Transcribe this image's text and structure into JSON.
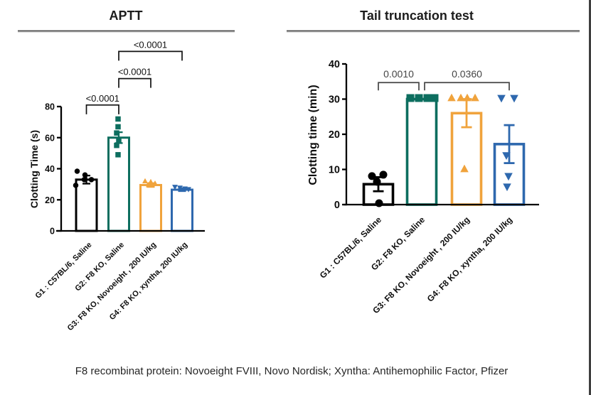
{
  "footer": {
    "caption": "F8 recombinat protein: Novoeight FVIII, Novo Nordisk; Xyntha: Antihemophilic Factor, Pfizer"
  },
  "colors": {
    "g1_black": "#000000",
    "g2_teal": "#0d6e5f",
    "g3_orange": "#f0a33c",
    "g4_blue": "#2e68ae",
    "divider_gray": "#6f6f6f",
    "bar_fill": "#ffffff",
    "sig_text_left": "#111111",
    "sig_text_right": "#454545"
  },
  "chart_data": [
    {
      "type": "bar",
      "title": "APTT",
      "ylabel": "Clotting Time (s)",
      "xlabel": "",
      "ylim": [
        0,
        80
      ],
      "yticks": [
        0,
        20,
        40,
        60,
        80
      ],
      "grid": false,
      "legend": "none",
      "categories": [
        "G1 : C57BL/6, Saline",
        "G2: F8 KO, Saline",
        "G3: F8 KO, Novoeight , 200 IU/kg",
        "G4: F8 KO, xyntha, 200 IU/kg"
      ],
      "series": [
        {
          "name": "G1",
          "mean": 33,
          "sem": 2.6,
          "color": "#000000",
          "marker": "circle",
          "points": [
            [
              38.4,
              -13
            ],
            [
              36,
              -2
            ],
            [
              33,
              7
            ],
            [
              33,
              -3
            ],
            [
              29.3,
              -15
            ]
          ]
        },
        {
          "name": "G2",
          "mean": 60,
          "sem": 3.5,
          "color": "#0d6e5f",
          "marker": "square",
          "points": [
            [
              72,
              -1
            ],
            [
              67,
              -1
            ],
            [
              63,
              -3
            ],
            [
              58.5,
              0
            ],
            [
              55,
              -3
            ],
            [
              49,
              -1
            ]
          ]
        },
        {
          "name": "G3",
          "mean": 29.5,
          "sem": 1.2,
          "color": "#f0a33c",
          "marker": "triangle-up",
          "points": [
            [
              32,
              -8
            ],
            [
              31.5,
              0
            ],
            [
              30.5,
              6
            ],
            [
              29.5,
              -3
            ]
          ]
        },
        {
          "name": "G4",
          "mean": 26.5,
          "sem": 0.9,
          "color": "#2e68ae",
          "marker": "triangle-down",
          "points": [
            [
              28.3,
              -10
            ],
            [
              27.8,
              -3
            ],
            [
              27.2,
              4
            ],
            [
              26.8,
              9
            ]
          ]
        }
      ],
      "significance": [
        {
          "from": 0,
          "to": 1,
          "label": "<0.0001",
          "y": 81
        },
        {
          "from": 1,
          "to": 2,
          "label": "<0.0001",
          "y": 98
        },
        {
          "from": 1,
          "to": 3,
          "label": "<0.0001",
          "y": 115.5
        }
      ]
    },
    {
      "type": "bar",
      "title": "Tail truncation test",
      "ylabel": "Clotting time (min)",
      "xlabel": "",
      "ylim": [
        0,
        40
      ],
      "yticks": [
        0,
        10,
        20,
        30,
        40
      ],
      "grid": false,
      "legend": "none",
      "categories": [
        "G1 : C57BL/6, Saline",
        "G2: F8 KO, Saline",
        "G3: F8 KO, Novoeight , 200 IU/kg",
        "G4: F8 KO, xyntha, 200 IU/kg"
      ],
      "series": [
        {
          "name": "G1",
          "mean": 5.8,
          "sem": 2.0,
          "color": "#000000",
          "marker": "circle",
          "points": [
            [
              8.1,
              -9
            ],
            [
              8.5,
              7
            ],
            [
              6.5,
              -2
            ],
            [
              0.4,
              1
            ]
          ]
        },
        {
          "name": "G2",
          "mean": 30,
          "sem": 0,
          "color": "#0d6e5f",
          "marker": "square",
          "points": [
            [
              30.3,
              -16
            ],
            [
              30.3,
              -4
            ],
            [
              30.3,
              8
            ],
            [
              30.3,
              18
            ]
          ]
        },
        {
          "name": "G3",
          "mean": 26,
          "sem": 4.0,
          "color": "#f0a33c",
          "marker": "triangle-up",
          "points": [
            [
              30.3,
              -21
            ],
            [
              30.3,
              -8
            ],
            [
              30.3,
              1
            ],
            [
              30.3,
              12
            ],
            [
              10.1,
              -3
            ]
          ]
        },
        {
          "name": "G4",
          "mean": 17.2,
          "sem": 5.4,
          "color": "#2e68ae",
          "marker": "triangle-down",
          "points": [
            [
              30.3,
              -11
            ],
            [
              30.3,
              7
            ],
            [
              14,
              -4
            ],
            [
              8.1,
              -1
            ],
            [
              5.1,
              -3
            ]
          ]
        }
      ],
      "significance": [
        {
          "from": 0,
          "to": 1,
          "label": "0.0010",
          "y": 34.7,
          "to_dx": -4
        },
        {
          "from": 1,
          "to": 3,
          "label": "0.0360",
          "y": 34.7,
          "from_dx": 4
        }
      ]
    }
  ]
}
